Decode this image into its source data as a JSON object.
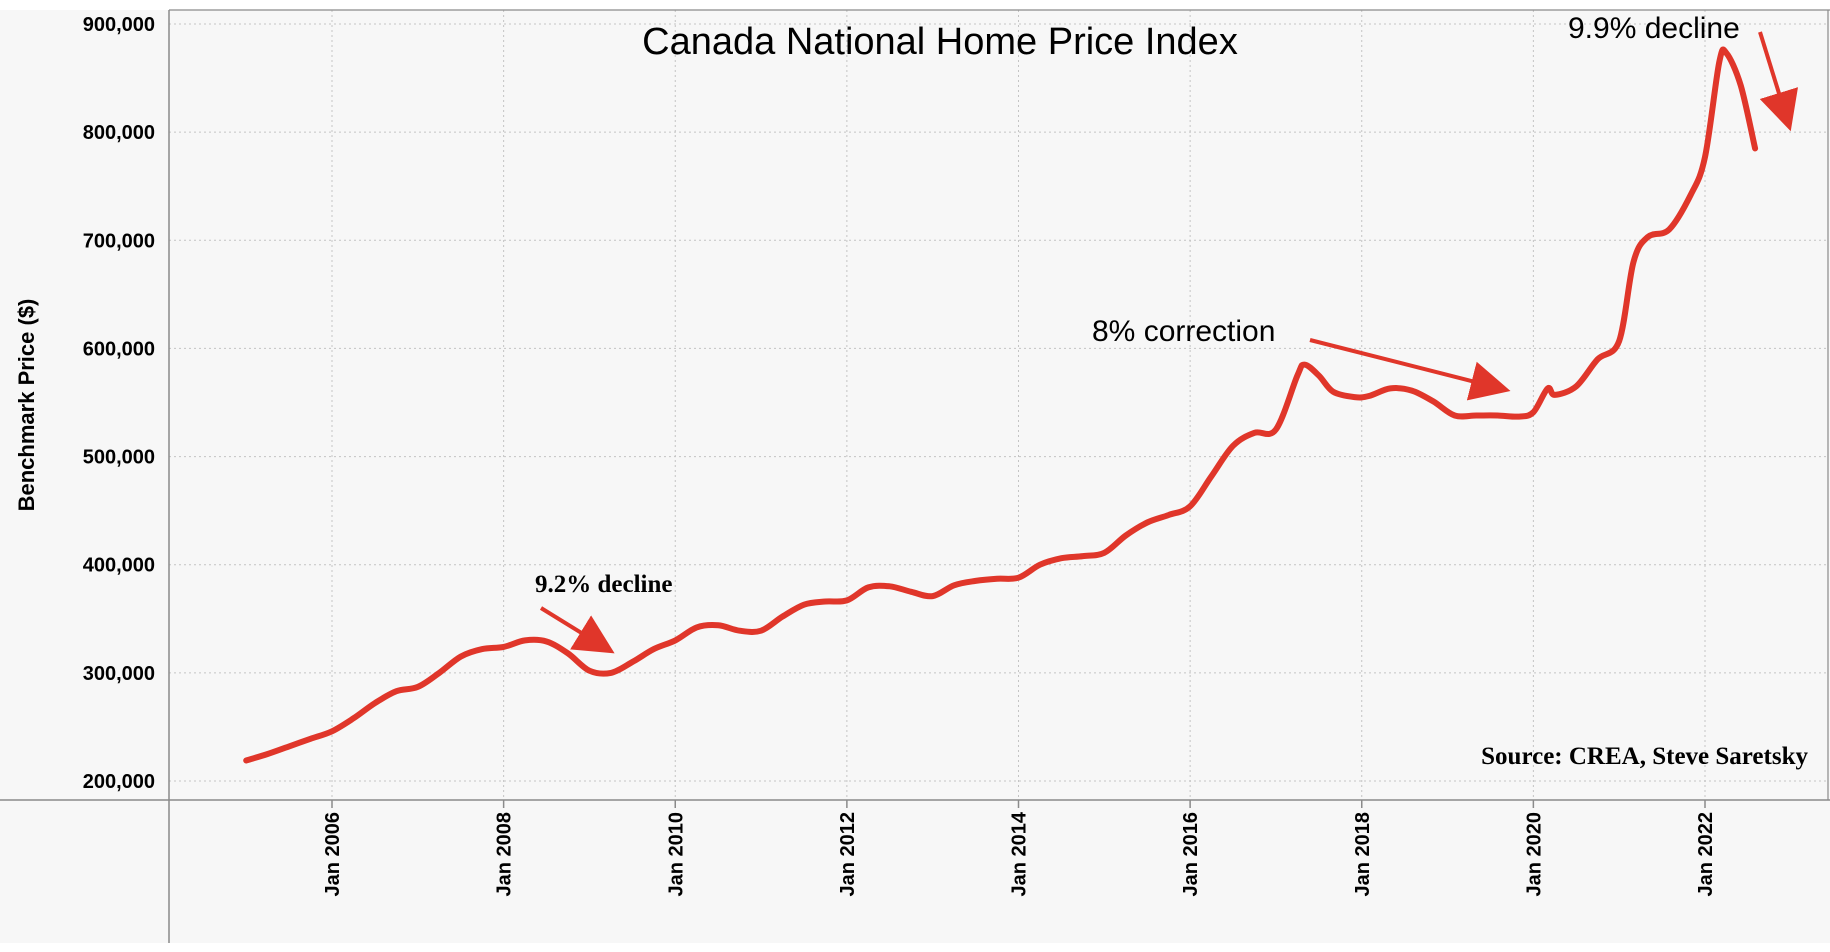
{
  "chart_data": {
    "type": "line",
    "title": "Canada National Home Price Index",
    "ylabel": "Benchmark Price ($)",
    "xlabel": "",
    "ylim": [
      190000,
      915000
    ],
    "xlim": [
      "2004-10",
      "2023-09"
    ],
    "y_ticks": [
      "200,000",
      "300,000",
      "400,000",
      "500,000",
      "600,000",
      "700,000",
      "800,000",
      "900,000"
    ],
    "x_ticks": [
      "Jan 2006",
      "Jan 2008",
      "Jan 2010",
      "Jan 2012",
      "Jan 2014",
      "Jan 2016",
      "Jan 2018",
      "Jan 2020",
      "Jan 2022"
    ],
    "grid": true,
    "line_color": "#e0362a",
    "series": [
      {
        "points": [
          [
            "2005-01",
            219000
          ],
          [
            "2005-04",
            225000
          ],
          [
            "2005-07",
            232000
          ],
          [
            "2005-10",
            239000
          ],
          [
            "2006-01",
            246000
          ],
          [
            "2006-04",
            258000
          ],
          [
            "2006-07",
            272000
          ],
          [
            "2006-10",
            283000
          ],
          [
            "2007-01",
            287000
          ],
          [
            "2007-04",
            300000
          ],
          [
            "2007-07",
            315000
          ],
          [
            "2007-10",
            322000
          ],
          [
            "2008-01",
            324000
          ],
          [
            "2008-04",
            330000
          ],
          [
            "2008-07",
            329000
          ],
          [
            "2008-10",
            318000
          ],
          [
            "2009-01",
            302000
          ],
          [
            "2009-04",
            300000
          ],
          [
            "2009-07",
            310000
          ],
          [
            "2009-10",
            322000
          ],
          [
            "2010-01",
            330000
          ],
          [
            "2010-04",
            342000
          ],
          [
            "2010-07",
            344000
          ],
          [
            "2010-10",
            339000
          ],
          [
            "2011-01",
            339000
          ],
          [
            "2011-04",
            352000
          ],
          [
            "2011-07",
            363000
          ],
          [
            "2011-10",
            366000
          ],
          [
            "2012-01",
            367000
          ],
          [
            "2012-04",
            379000
          ],
          [
            "2012-07",
            380000
          ],
          [
            "2012-10",
            375000
          ],
          [
            "2013-01",
            371000
          ],
          [
            "2013-04",
            381000
          ],
          [
            "2013-07",
            385000
          ],
          [
            "2013-10",
            387000
          ],
          [
            "2014-01",
            388000
          ],
          [
            "2014-04",
            400000
          ],
          [
            "2014-07",
            406000
          ],
          [
            "2014-10",
            408000
          ],
          [
            "2015-01",
            411000
          ],
          [
            "2015-04",
            427000
          ],
          [
            "2015-07",
            439000
          ],
          [
            "2015-10",
            446000
          ],
          [
            "2016-01",
            454000
          ],
          [
            "2016-04",
            482000
          ],
          [
            "2016-07",
            510000
          ],
          [
            "2016-10",
            522000
          ],
          [
            "2017-01",
            525000
          ],
          [
            "2017-04",
            575000
          ],
          [
            "2017-05",
            585000
          ],
          [
            "2017-07",
            575000
          ],
          [
            "2017-09",
            560000
          ],
          [
            "2017-12",
            555000
          ],
          [
            "2018-02",
            556000
          ],
          [
            "2018-05",
            563000
          ],
          [
            "2018-08",
            561000
          ],
          [
            "2018-11",
            551000
          ],
          [
            "2019-02",
            538000
          ],
          [
            "2019-05",
            538000
          ],
          [
            "2019-08",
            538000
          ],
          [
            "2019-11",
            537000
          ],
          [
            "2020-01",
            541000
          ],
          [
            "2020-03",
            563000
          ],
          [
            "2020-04",
            557000
          ],
          [
            "2020-07",
            565000
          ],
          [
            "2020-10",
            590000
          ],
          [
            "2021-01",
            607000
          ],
          [
            "2021-03",
            680000
          ],
          [
            "2021-05",
            703000
          ],
          [
            "2021-08",
            710000
          ],
          [
            "2021-11",
            742000
          ],
          [
            "2022-01",
            777000
          ],
          [
            "2022-03",
            865000
          ],
          [
            "2022-04",
            873000
          ],
          [
            "2022-06",
            843000
          ],
          [
            "2022-08",
            785000
          ]
        ]
      }
    ],
    "annotations": [
      "9.2% decline",
      "8% correction",
      "9.9% decline",
      "Source: CREA, Steve Saretsky"
    ]
  }
}
